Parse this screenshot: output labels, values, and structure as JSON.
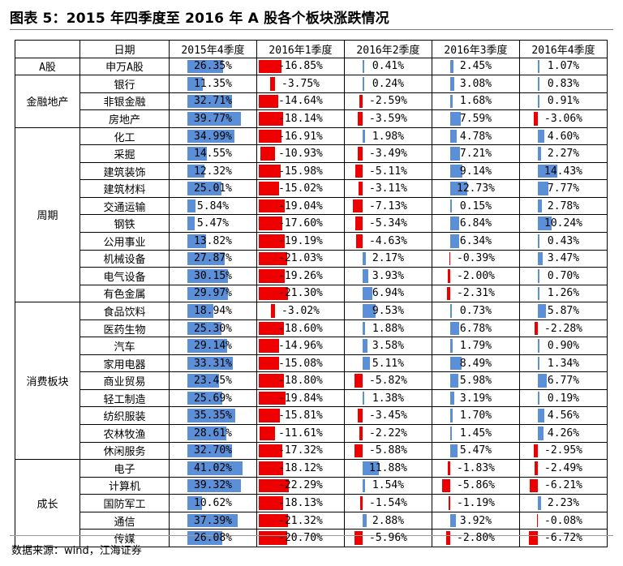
{
  "title": "图表 5：2015 年四季度至 2016 年 A 股各个板块涨跌情况",
  "source": "数据来源：wind，江海证券",
  "colors": {
    "positive_bar": "#5b8fd8",
    "negative_bar": "#ee0000"
  },
  "table": {
    "header": [
      "",
      "日期",
      "2015年4季度",
      "2016年1季度",
      "2016年2季度",
      "2016年3季度",
      "2016年4季度"
    ],
    "groups": [
      {
        "name": "A股",
        "rows": [
          {
            "name": "申万A股",
            "values": [
              "26.35%",
              "-16.85%",
              "0.41%",
              "2.45%",
              "1.07%"
            ],
            "nums": [
              26.35,
              -16.85,
              0.41,
              2.45,
              1.07
            ]
          }
        ]
      },
      {
        "name": "金融地产",
        "rows": [
          {
            "name": "银行",
            "values": [
              "11.35%",
              "-3.75%",
              "0.24%",
              "3.08%",
              "0.83%"
            ],
            "nums": [
              11.35,
              -3.75,
              0.24,
              3.08,
              0.83
            ]
          },
          {
            "name": "非银金融",
            "values": [
              "32.71%",
              "-14.64%",
              "-2.59%",
              "1.68%",
              "0.91%"
            ],
            "nums": [
              32.71,
              -14.64,
              -2.59,
              1.68,
              0.91
            ]
          },
          {
            "name": "房地产",
            "values": [
              "39.77%",
              "-18.14%",
              "-3.59%",
              "7.59%",
              "-3.06%"
            ],
            "nums": [
              39.77,
              -18.14,
              -3.59,
              7.59,
              -3.06
            ]
          }
        ]
      },
      {
        "name": "周期",
        "rows": [
          {
            "name": "化工",
            "values": [
              "34.99%",
              "-16.91%",
              "1.98%",
              "4.78%",
              "4.60%"
            ],
            "nums": [
              34.99,
              -16.91,
              1.98,
              4.78,
              4.6
            ]
          },
          {
            "name": "采掘",
            "values": [
              "14.55%",
              "-10.93%",
              "-3.49%",
              "7.21%",
              "2.27%"
            ],
            "nums": [
              14.55,
              -10.93,
              -3.49,
              7.21,
              2.27
            ]
          },
          {
            "name": "建筑装饰",
            "values": [
              "12.32%",
              "-15.98%",
              "-5.11%",
              "9.14%",
              "14.43%"
            ],
            "nums": [
              12.32,
              -15.98,
              -5.11,
              9.14,
              14.43
            ]
          },
          {
            "name": "建筑材料",
            "values": [
              "25.01%",
              "-15.02%",
              "-3.11%",
              "12.73%",
              "7.77%"
            ],
            "nums": [
              25.01,
              -15.02,
              -3.11,
              12.73,
              7.77
            ]
          },
          {
            "name": "交通运输",
            "values": [
              "5.84%",
              "-19.04%",
              "-7.13%",
              "0.15%",
              "2.78%"
            ],
            "nums": [
              5.84,
              -19.04,
              -7.13,
              0.15,
              2.78
            ]
          },
          {
            "name": "钢铁",
            "values": [
              "5.47%",
              "-17.60%",
              "-5.34%",
              "6.84%",
              "10.24%"
            ],
            "nums": [
              5.47,
              -17.6,
              -5.34,
              6.84,
              10.24
            ]
          },
          {
            "name": "公用事业",
            "values": [
              "13.82%",
              "-19.19%",
              "-4.63%",
              "6.34%",
              "0.43%"
            ],
            "nums": [
              13.82,
              -19.19,
              -4.63,
              6.34,
              0.43
            ]
          },
          {
            "name": "机械设备",
            "values": [
              "27.87%",
              "-21.03%",
              "2.17%",
              "-0.39%",
              "3.47%"
            ],
            "nums": [
              27.87,
              -21.03,
              2.17,
              -0.39,
              3.47
            ]
          },
          {
            "name": "电气设备",
            "values": [
              "30.15%",
              "-19.26%",
              "3.93%",
              "-2.00%",
              "0.70%"
            ],
            "nums": [
              30.15,
              -19.26,
              3.93,
              -2.0,
              0.7
            ]
          },
          {
            "name": "有色金属",
            "values": [
              "29.97%",
              "-21.30%",
              "6.94%",
              "-2.31%",
              "1.26%"
            ],
            "nums": [
              29.97,
              -21.3,
              6.94,
              -2.31,
              1.26
            ]
          }
        ]
      },
      {
        "name": "消费板块",
        "rows": [
          {
            "name": "食品饮料",
            "values": [
              "18.94%",
              "-3.02%",
              "9.53%",
              "0.73%",
              "5.87%"
            ],
            "nums": [
              18.94,
              -3.02,
              9.53,
              0.73,
              5.87
            ]
          },
          {
            "name": "医药生物",
            "values": [
              "25.30%",
              "-18.60%",
              "1.88%",
              "6.78%",
              "-2.28%"
            ],
            "nums": [
              25.3,
              -18.6,
              1.88,
              6.78,
              -2.28
            ]
          },
          {
            "name": "汽车",
            "values": [
              "29.14%",
              "-14.96%",
              "3.58%",
              "1.79%",
              "0.90%"
            ],
            "nums": [
              29.14,
              -14.96,
              3.58,
              1.79,
              0.9
            ]
          },
          {
            "name": "家用电器",
            "values": [
              "33.31%",
              "-15.08%",
              "5.11%",
              "8.49%",
              "1.34%"
            ],
            "nums": [
              33.31,
              -15.08,
              5.11,
              8.49,
              1.34
            ]
          },
          {
            "name": "商业贸易",
            "values": [
              "23.45%",
              "-18.80%",
              "-5.82%",
              "5.98%",
              "6.77%"
            ],
            "nums": [
              23.45,
              -18.8,
              -5.82,
              5.98,
              6.77
            ]
          },
          {
            "name": "轻工制造",
            "values": [
              "25.69%",
              "-19.84%",
              "1.38%",
              "3.19%",
              "0.19%"
            ],
            "nums": [
              25.69,
              -19.84,
              1.38,
              3.19,
              0.19
            ]
          },
          {
            "name": "纺织服装",
            "values": [
              "35.35%",
              "-15.81%",
              "-3.45%",
              "1.70%",
              "4.56%"
            ],
            "nums": [
              35.35,
              -15.81,
              -3.45,
              1.7,
              4.56
            ]
          },
          {
            "name": "农林牧渔",
            "values": [
              "28.61%",
              "-11.61%",
              "-2.22%",
              "1.45%",
              "4.26%"
            ],
            "nums": [
              28.61,
              -11.61,
              -2.22,
              1.45,
              4.26
            ]
          },
          {
            "name": "休闲服务",
            "values": [
              "32.70%",
              "-17.32%",
              "-5.88%",
              "5.47%",
              "-2.95%"
            ],
            "nums": [
              32.7,
              -17.32,
              -5.88,
              5.47,
              -2.95
            ]
          }
        ]
      },
      {
        "name": "成长",
        "rows": [
          {
            "name": "电子",
            "values": [
              "41.02%",
              "-18.12%",
              "11.88%",
              "-1.83%",
              "-2.49%"
            ],
            "nums": [
              41.02,
              -18.12,
              11.88,
              -1.83,
              -2.49
            ]
          },
          {
            "name": "计算机",
            "values": [
              "39.32%",
              "-22.29%",
              "1.54%",
              "-5.86%",
              "-6.21%"
            ],
            "nums": [
              39.32,
              -22.29,
              1.54,
              -5.86,
              -6.21
            ]
          },
          {
            "name": "国防军工",
            "values": [
              "10.62%",
              "-18.13%",
              "-1.54%",
              "-1.19%",
              "2.23%"
            ],
            "nums": [
              10.62,
              -18.13,
              -1.54,
              -1.19,
              2.23
            ]
          },
          {
            "name": "通信",
            "values": [
              "37.39%",
              "-21.32%",
              "2.88%",
              "3.92%",
              "-0.08%"
            ],
            "nums": [
              37.39,
              -21.32,
              2.88,
              3.92,
              -0.08
            ]
          },
          {
            "name": "传媒",
            "values": [
              "26.08%",
              "-20.70%",
              "-5.96%",
              "-2.80%",
              "-6.72%"
            ],
            "nums": [
              26.08,
              -20.7,
              -5.96,
              -2.8,
              -6.72
            ]
          }
        ]
      }
    ]
  }
}
